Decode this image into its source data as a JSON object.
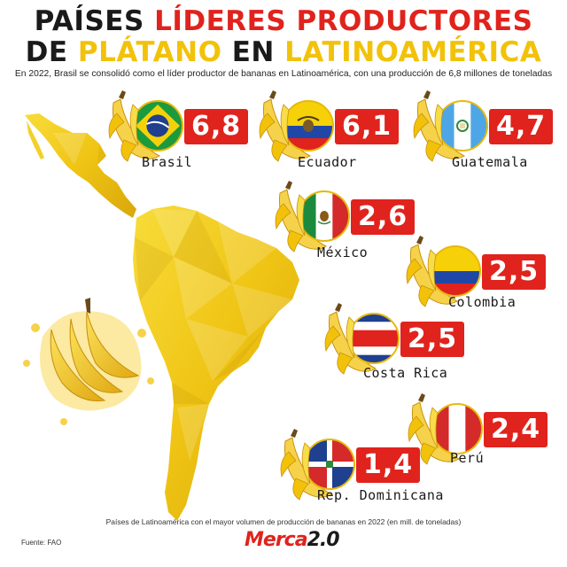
{
  "title": {
    "line1_a": "PAÍSES ",
    "line1_b": "LÍDERES PRODUCTORES",
    "line2_a": "DE ",
    "line2_b": "PLÁTANO",
    "line2_c": " EN ",
    "line2_d": "LATINOAMÉRICA"
  },
  "subtitle": "En 2022, Brasil se consolidó como el líder productor de bananas en Latinoamérica, con una producción de 6,8 millones de toneladas",
  "footnote": "Países de Latinoamérica con el mayor volumen de producción de bananas en 2022 (en mill. de toneladas)",
  "source": "Fuente: FAO",
  "logo": {
    "text": "Merca",
    "num": "2.0"
  },
  "colors": {
    "red": "#e0231d",
    "yellow": "#f2c20a",
    "dark": "#1a1a1a"
  },
  "chart_data": {
    "type": "table",
    "title": "PAÍSES LÍDERES PRODUCTORES DE PLÁTANO EN LATINOAMÉRICA",
    "unit": "mill. de toneladas",
    "categories": [
      "Brasil",
      "Ecuador",
      "Guatemala",
      "México",
      "Colombia",
      "Costa Rica",
      "Perú",
      "Rep. Dominicana"
    ],
    "values": [
      6.8,
      6.1,
      4.7,
      2.6,
      2.5,
      2.5,
      2.4,
      1.4
    ],
    "items": [
      {
        "country": "Brasil",
        "value_label": "6,8",
        "flag": "brazil-flag"
      },
      {
        "country": "Ecuador",
        "value_label": "6,1",
        "flag": "ecuador-flag"
      },
      {
        "country": "Guatemala",
        "value_label": "4,7",
        "flag": "guatemala-flag"
      },
      {
        "country": "México",
        "value_label": "2,6",
        "flag": "mexico-flag"
      },
      {
        "country": "Colombia",
        "value_label": "2,5",
        "flag": "colombia-flag"
      },
      {
        "country": "Costa Rica",
        "value_label": "2,5",
        "flag": "costa-rica-flag"
      },
      {
        "country": "Perú",
        "value_label": "2,4",
        "flag": "peru-flag"
      },
      {
        "country": "Rep. Dominicana",
        "value_label": "1,4",
        "flag": "dominican-republic-flag"
      }
    ]
  }
}
